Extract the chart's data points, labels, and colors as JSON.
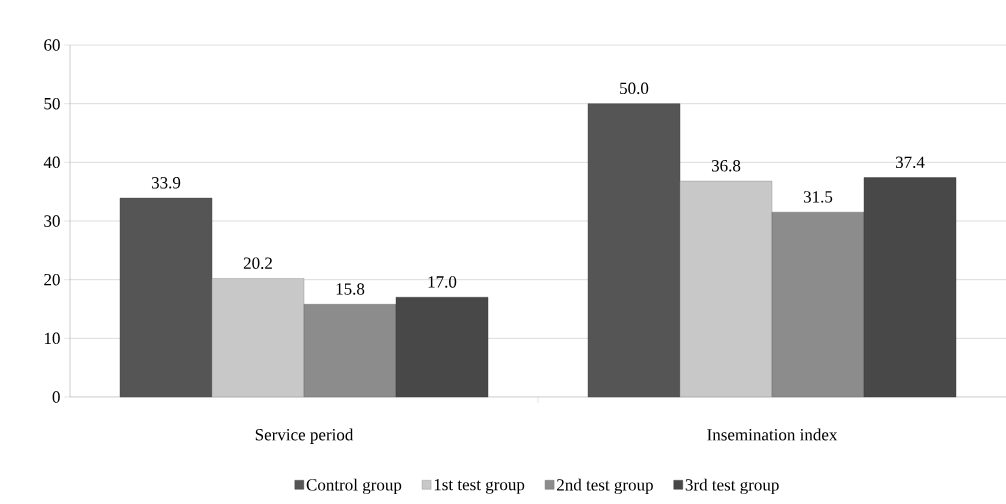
{
  "chart_data": {
    "type": "bar",
    "categories": [
      "Service period",
      "Insemination index"
    ],
    "series": [
      {
        "name": "Control group",
        "color": "#555555",
        "values": [
          33.9,
          50.0
        ],
        "value_labels": [
          "33.9",
          "50.0"
        ]
      },
      {
        "name": "1st test group",
        "color": "#c8c8c8",
        "values": [
          20.2,
          36.8
        ],
        "value_labels": [
          "20.2",
          "36.8"
        ]
      },
      {
        "name": "2nd test group",
        "color": "#8c8c8c",
        "values": [
          15.8,
          31.5
        ],
        "value_labels": [
          "15.8",
          "31.5"
        ]
      },
      {
        "name": "3rd test group",
        "color": "#484848",
        "values": [
          17.0,
          37.4
        ],
        "value_labels": [
          "17.0",
          "37.4"
        ]
      }
    ],
    "ylim": [
      0,
      60
    ],
    "yticks": [
      0,
      10,
      20,
      30,
      40,
      50,
      60
    ],
    "grid": "y",
    "legend": "bottom"
  }
}
